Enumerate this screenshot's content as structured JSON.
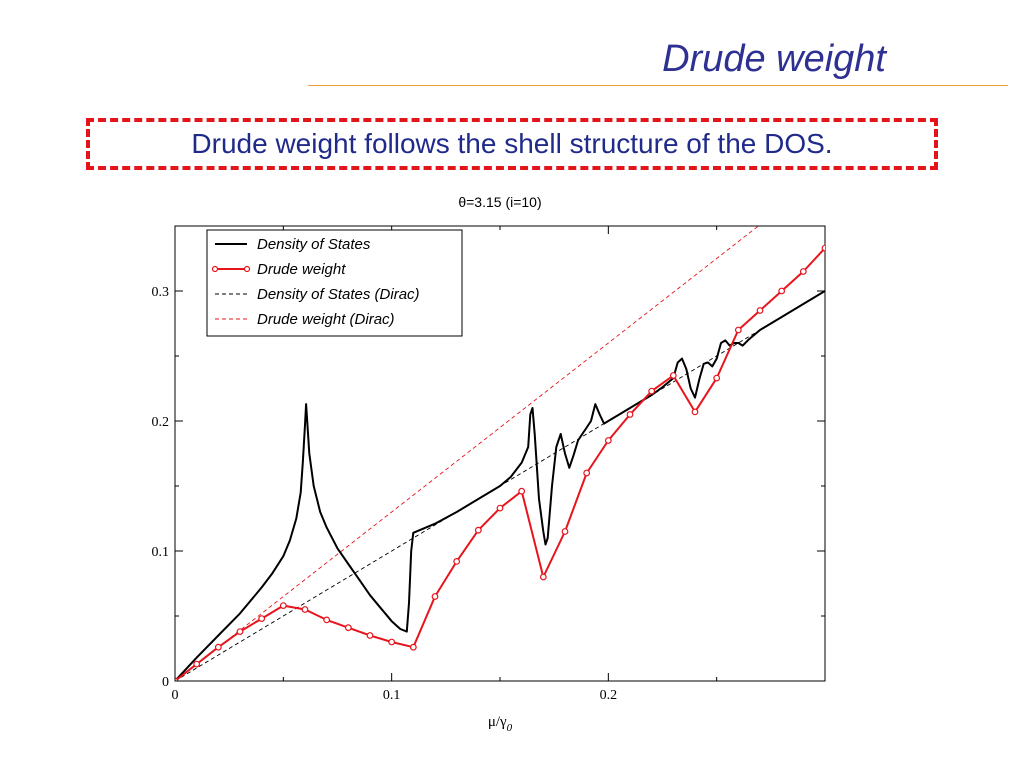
{
  "slide": {
    "title": "Drude weight",
    "callout": "Drude weight follows the shell structure of the DOS."
  },
  "chart_data": {
    "type": "line",
    "title": "θ=3.15 (i=10)",
    "xlabel_main": "μ/γ",
    "xlabel_sub": "0",
    "ylabel": "",
    "xlim": [
      0,
      0.3
    ],
    "ylim": [
      0,
      0.35
    ],
    "xticks": [
      0,
      0.1,
      0.2
    ],
    "xtick_labels": [
      "0",
      "0.1",
      "0.2"
    ],
    "yticks": [
      0,
      0.1,
      0.2,
      0.3
    ],
    "ytick_labels": [
      "0",
      "0.1",
      "0.2",
      "0.3"
    ],
    "grid": false,
    "legend_position": "top-left",
    "series": [
      {
        "name": "Density of States",
        "color": "#000000",
        "style": "solid",
        "marker": false,
        "x": [
          0,
          0.01,
          0.02,
          0.03,
          0.04,
          0.045,
          0.05,
          0.053,
          0.056,
          0.058,
          0.059,
          0.06,
          0.0605,
          0.061,
          0.062,
          0.064,
          0.067,
          0.07,
          0.075,
          0.08,
          0.085,
          0.09,
          0.095,
          0.1,
          0.104,
          0.107,
          0.108,
          0.109,
          0.11,
          0.12,
          0.13,
          0.14,
          0.15,
          0.155,
          0.16,
          0.163,
          0.164,
          0.165,
          0.166,
          0.168,
          0.17,
          0.171,
          0.172,
          0.174,
          0.176,
          0.178,
          0.18,
          0.182,
          0.184,
          0.186,
          0.188,
          0.19,
          0.192,
          0.194,
          0.196,
          0.198,
          0.2,
          0.205,
          0.21,
          0.215,
          0.22,
          0.225,
          0.23,
          0.232,
          0.234,
          0.236,
          0.238,
          0.24,
          0.242,
          0.244,
          0.246,
          0.248,
          0.25,
          0.252,
          0.254,
          0.256,
          0.258,
          0.26,
          0.262,
          0.265,
          0.27,
          0.28,
          0.29,
          0.3
        ],
        "y": [
          0,
          0.018,
          0.035,
          0.052,
          0.072,
          0.083,
          0.096,
          0.108,
          0.125,
          0.145,
          0.168,
          0.197,
          0.213,
          0.2,
          0.175,
          0.15,
          0.13,
          0.118,
          0.102,
          0.09,
          0.078,
          0.066,
          0.056,
          0.046,
          0.04,
          0.038,
          0.06,
          0.1,
          0.114,
          0.121,
          0.13,
          0.14,
          0.15,
          0.157,
          0.168,
          0.18,
          0.205,
          0.21,
          0.19,
          0.14,
          0.115,
          0.105,
          0.11,
          0.15,
          0.18,
          0.19,
          0.175,
          0.164,
          0.174,
          0.185,
          0.19,
          0.195,
          0.2,
          0.213,
          0.205,
          0.198,
          0.2,
          0.205,
          0.21,
          0.215,
          0.22,
          0.226,
          0.233,
          0.245,
          0.248,
          0.24,
          0.225,
          0.218,
          0.232,
          0.244,
          0.245,
          0.242,
          0.248,
          0.26,
          0.262,
          0.258,
          0.26,
          0.26,
          0.258,
          0.263,
          0.27,
          0.28,
          0.29,
          0.3
        ]
      },
      {
        "name": "Drude weight",
        "color": "#e8141c",
        "style": "solid",
        "marker": true,
        "x": [
          0,
          0.01,
          0.02,
          0.03,
          0.04,
          0.05,
          0.06,
          0.07,
          0.08,
          0.09,
          0.1,
          0.11,
          0.12,
          0.13,
          0.14,
          0.15,
          0.16,
          0.17,
          0.18,
          0.19,
          0.2,
          0.21,
          0.22,
          0.23,
          0.24,
          0.25,
          0.26,
          0.27,
          0.28,
          0.29,
          0.3
        ],
        "y": [
          0,
          0.013,
          0.026,
          0.038,
          0.048,
          0.058,
          0.055,
          0.047,
          0.041,
          0.035,
          0.03,
          0.026,
          0.065,
          0.092,
          0.116,
          0.133,
          0.146,
          0.08,
          0.115,
          0.16,
          0.185,
          0.205,
          0.223,
          0.235,
          0.207,
          0.233,
          0.27,
          0.285,
          0.3,
          0.315,
          0.333
        ]
      },
      {
        "name": "Density of States (Dirac)",
        "color": "#000000",
        "style": "dashed",
        "marker": false,
        "x": [
          0,
          0.3
        ],
        "y": [
          0,
          0.3
        ]
      },
      {
        "name": "Drude weight (Dirac)",
        "color": "#e8141c",
        "style": "dashed",
        "marker": false,
        "x": [
          0,
          0.3
        ],
        "y": [
          0,
          0.39
        ]
      }
    ]
  }
}
